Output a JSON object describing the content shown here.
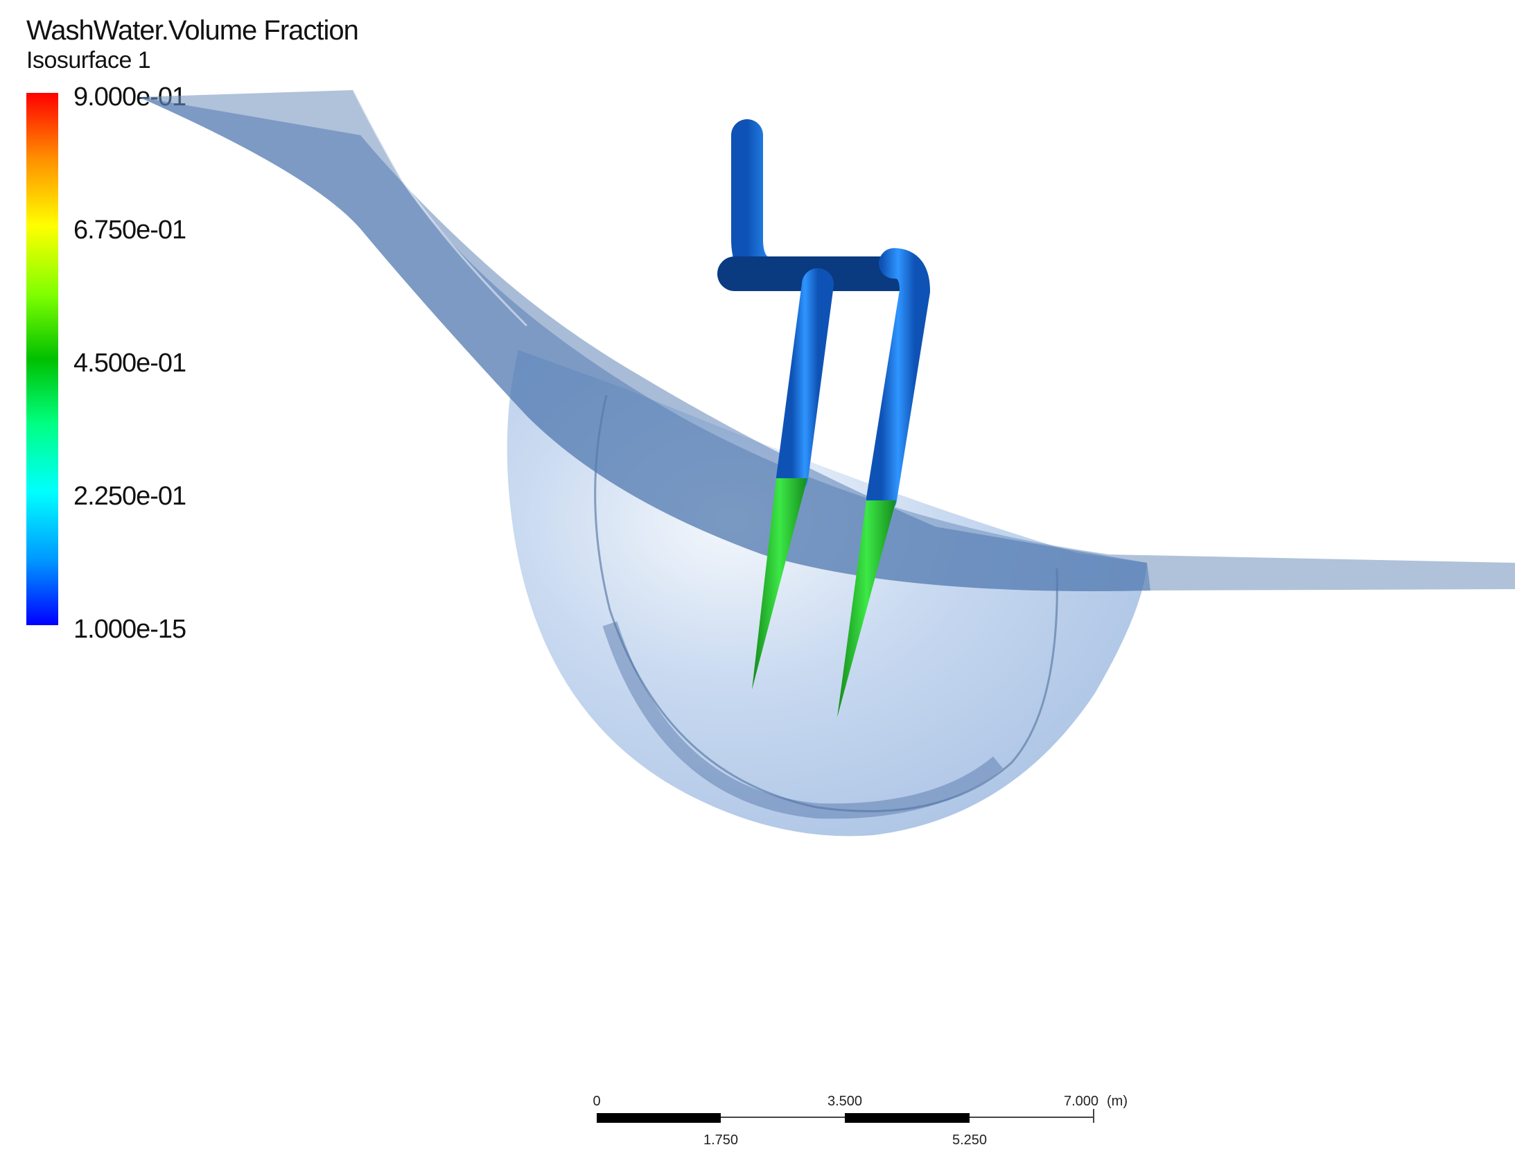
{
  "legend": {
    "title": "WashWater.Volume Fraction",
    "subtitle": "Isosurface 1",
    "ticks": [
      "9.000e-01",
      "6.750e-01",
      "4.500e-01",
      "2.250e-01",
      "1.000e-15"
    ],
    "colors": [
      "#ff0000",
      "#ffff00",
      "#00c000",
      "#00ffff",
      "#0000ff"
    ]
  },
  "scale_bar": {
    "top_labels": [
      "0",
      "3.500",
      "7.000"
    ],
    "unit": "(m)",
    "bottom_labels": [
      "1.750",
      "5.250"
    ]
  },
  "scene": {
    "pipe_color": "#1a78e6",
    "pipe_dark_color": "#0a3a80",
    "nozzle_color": "#22c62c",
    "water_surface_color": "#5a82b8",
    "vessel_color": "#8fb3e0"
  }
}
